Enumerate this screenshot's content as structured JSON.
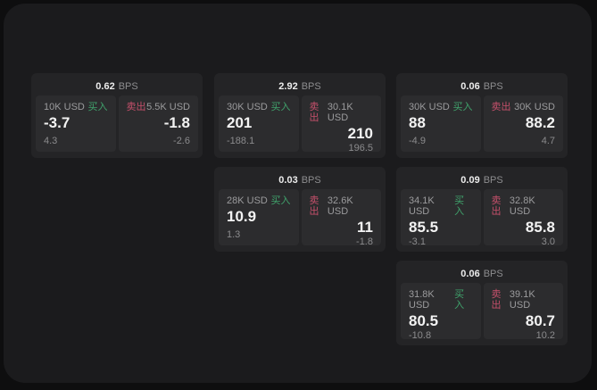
{
  "labels": {
    "bps_unit": "BPS",
    "buy": "买入",
    "sell": "卖出"
  },
  "colors": {
    "buy_green": "#40a36c",
    "sell_red": "#c5506b",
    "panel_bg": "#1b1b1d",
    "card_bg": "#242426",
    "tile_bg": "#2c2c2e"
  },
  "cards": [
    {
      "bps": "0.62",
      "buy": {
        "size": "10K USD",
        "value": "-3.7",
        "change": "4.3"
      },
      "sell": {
        "size": "5.5K USD",
        "value": "-1.8",
        "change": "-2.6"
      }
    },
    {
      "bps": "2.92",
      "buy": {
        "size": "30K USD",
        "value": "201",
        "change": "-188.1"
      },
      "sell": {
        "size": "30.1K USD",
        "value": "210",
        "change": "196.5"
      }
    },
    {
      "bps": "0.06",
      "buy": {
        "size": "30K USD",
        "value": "88",
        "change": "-4.9"
      },
      "sell": {
        "size": "30K USD",
        "value": "88.2",
        "change": "4.7"
      }
    },
    {
      "bps": "0.03",
      "buy": {
        "size": "28K USD",
        "value": "10.9",
        "change": "1.3"
      },
      "sell": {
        "size": "32.6K USD",
        "value": "11",
        "change": "-1.8"
      }
    },
    {
      "bps": "0.09",
      "buy": {
        "size": "34.1K USD",
        "value": "85.5",
        "change": "-3.1"
      },
      "sell": {
        "size": "32.8K USD",
        "value": "85.8",
        "change": "3.0"
      }
    },
    {
      "bps": "0.06",
      "buy": {
        "size": "31.8K USD",
        "value": "80.5",
        "change": "-10.8"
      },
      "sell": {
        "size": "39.1K USD",
        "value": "80.7",
        "change": "10.2"
      }
    }
  ]
}
